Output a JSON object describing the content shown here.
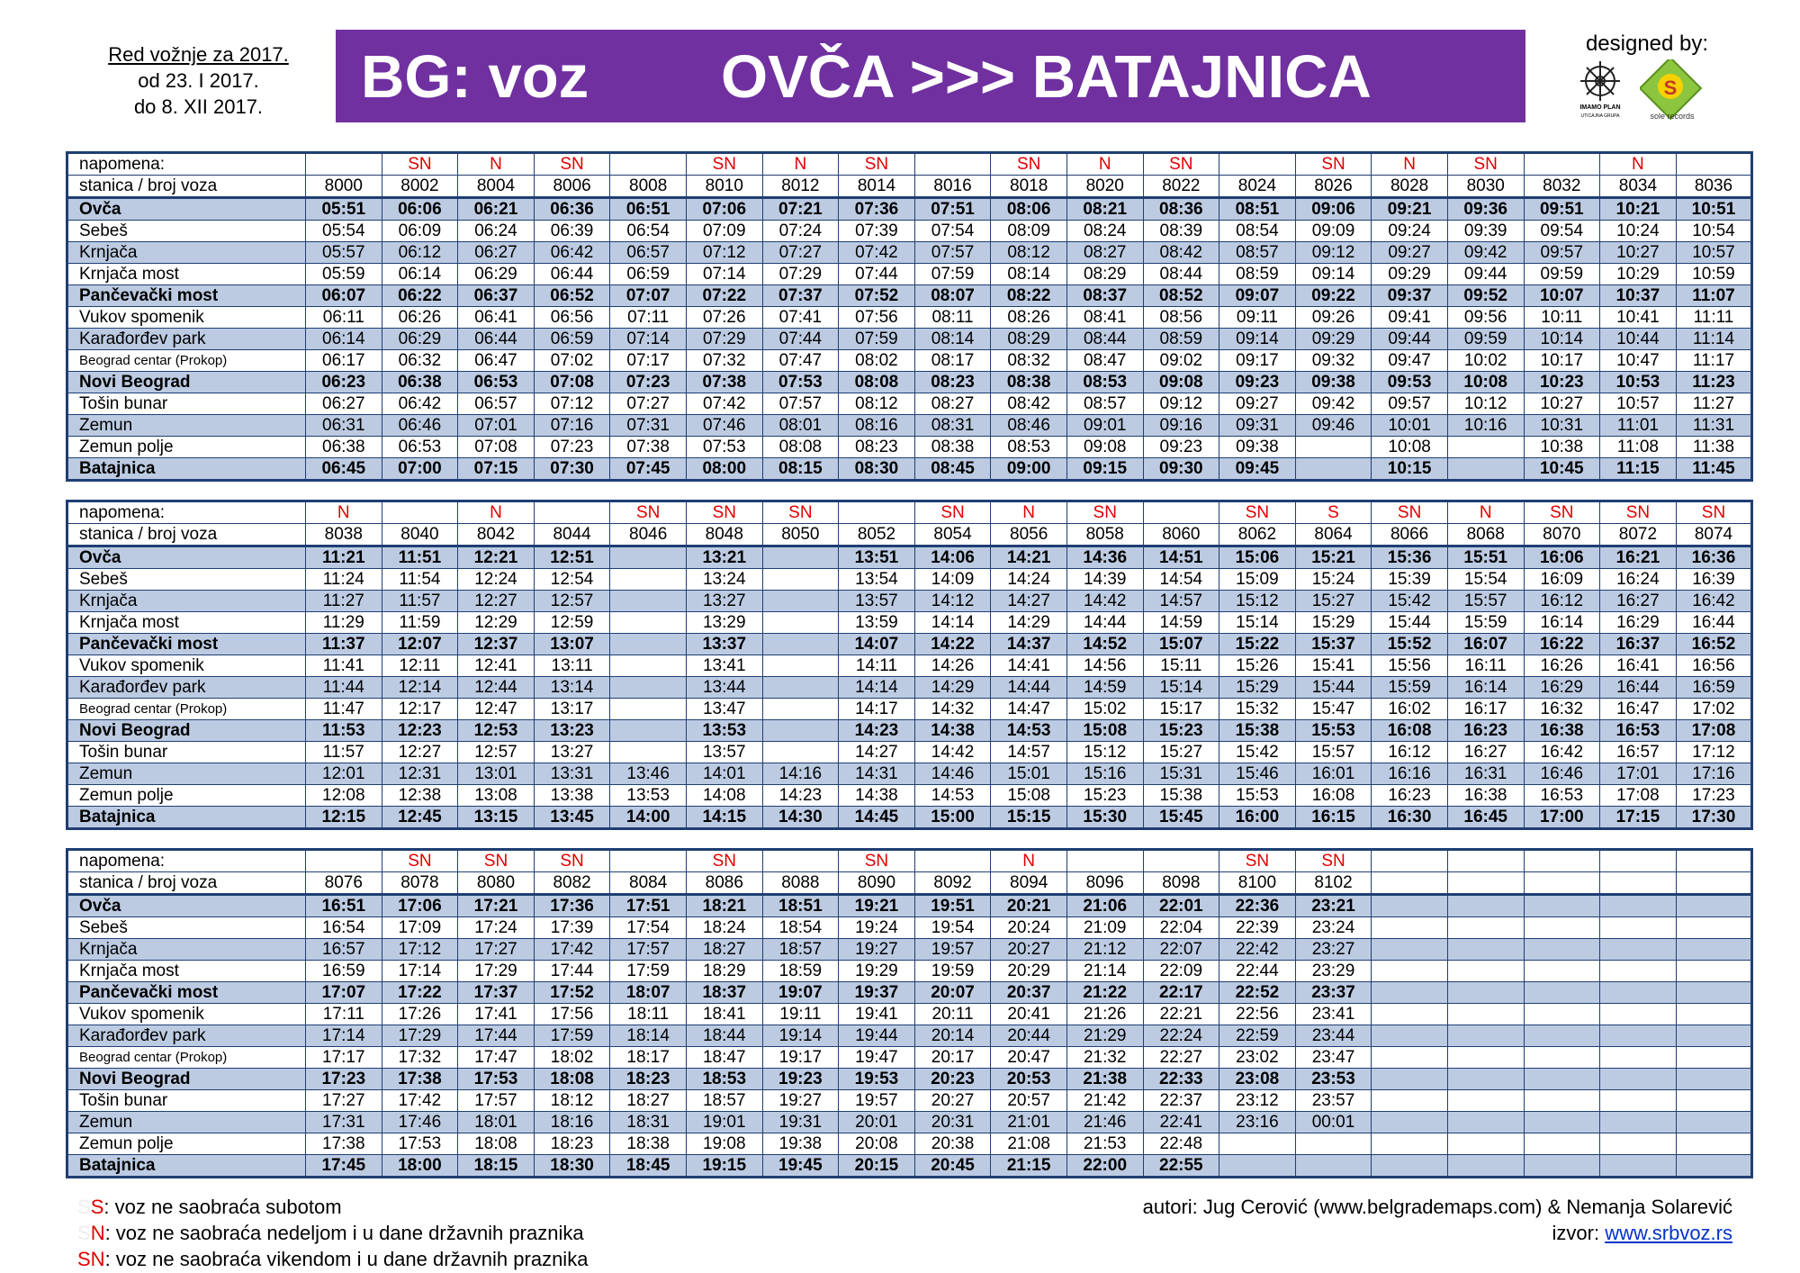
{
  "validity": [
    "Red vožnje za 2017.",
    "od 23. I 2017.",
    "do 8. XII 2017."
  ],
  "banner": {
    "left": "BG: voz",
    "right": "OVČA >>> BATAJNICA",
    "color": "#7030a0"
  },
  "designed_by": "designed by:",
  "logos": {
    "imamo_plan": "IMAMO PLAN",
    "imamo_plan_sub": "UTICAJNA GRUPA",
    "sole_records": "sole records"
  },
  "labels": {
    "note": "napomena:",
    "station_train": "stanica / broj voza"
  },
  "stations": [
    "Ovča",
    "Sebeš",
    "Krnjača",
    "Krnjača most",
    "Pančevački most",
    "Vukov spomenik",
    "Karađorđev park",
    "Beograd centar (Prokop)",
    "Novi Beograd",
    "Tošin bunar",
    "Zemun",
    "Zemun polje",
    "Batajnica"
  ],
  "tables": [
    {
      "trains": [
        "8000",
        "8002",
        "8004",
        "8006",
        "8008",
        "8010",
        "8012",
        "8014",
        "8016",
        "8018",
        "8020",
        "8022",
        "8024",
        "8026",
        "8028",
        "8030",
        "8032",
        "8034",
        "8036"
      ],
      "notes": [
        "",
        "SN",
        "N",
        "SN",
        "",
        "SN",
        "N",
        "SN",
        "",
        "SN",
        "N",
        "SN",
        "",
        "SN",
        "N",
        "SN",
        "",
        "N",
        ""
      ],
      "rows": [
        [
          "05:51",
          "06:06",
          "06:21",
          "06:36",
          "06:51",
          "07:06",
          "07:21",
          "07:36",
          "07:51",
          "08:06",
          "08:21",
          "08:36",
          "08:51",
          "09:06",
          "09:21",
          "09:36",
          "09:51",
          "10:21",
          "10:51"
        ],
        [
          "05:54",
          "06:09",
          "06:24",
          "06:39",
          "06:54",
          "07:09",
          "07:24",
          "07:39",
          "07:54",
          "08:09",
          "08:24",
          "08:39",
          "08:54",
          "09:09",
          "09:24",
          "09:39",
          "09:54",
          "10:24",
          "10:54"
        ],
        [
          "05:57",
          "06:12",
          "06:27",
          "06:42",
          "06:57",
          "07:12",
          "07:27",
          "07:42",
          "07:57",
          "08:12",
          "08:27",
          "08:42",
          "08:57",
          "09:12",
          "09:27",
          "09:42",
          "09:57",
          "10:27",
          "10:57"
        ],
        [
          "05:59",
          "06:14",
          "06:29",
          "06:44",
          "06:59",
          "07:14",
          "07:29",
          "07:44",
          "07:59",
          "08:14",
          "08:29",
          "08:44",
          "08:59",
          "09:14",
          "09:29",
          "09:44",
          "09:59",
          "10:29",
          "10:59"
        ],
        [
          "06:07",
          "06:22",
          "06:37",
          "06:52",
          "07:07",
          "07:22",
          "07:37",
          "07:52",
          "08:07",
          "08:22",
          "08:37",
          "08:52",
          "09:07",
          "09:22",
          "09:37",
          "09:52",
          "10:07",
          "10:37",
          "11:07"
        ],
        [
          "06:11",
          "06:26",
          "06:41",
          "06:56",
          "07:11",
          "07:26",
          "07:41",
          "07:56",
          "08:11",
          "08:26",
          "08:41",
          "08:56",
          "09:11",
          "09:26",
          "09:41",
          "09:56",
          "10:11",
          "10:41",
          "11:11"
        ],
        [
          "06:14",
          "06:29",
          "06:44",
          "06:59",
          "07:14",
          "07:29",
          "07:44",
          "07:59",
          "08:14",
          "08:29",
          "08:44",
          "08:59",
          "09:14",
          "09:29",
          "09:44",
          "09:59",
          "10:14",
          "10:44",
          "11:14"
        ],
        [
          "06:17",
          "06:32",
          "06:47",
          "07:02",
          "07:17",
          "07:32",
          "07:47",
          "08:02",
          "08:17",
          "08:32",
          "08:47",
          "09:02",
          "09:17",
          "09:32",
          "09:47",
          "10:02",
          "10:17",
          "10:47",
          "11:17"
        ],
        [
          "06:23",
          "06:38",
          "06:53",
          "07:08",
          "07:23",
          "07:38",
          "07:53",
          "08:08",
          "08:23",
          "08:38",
          "08:53",
          "09:08",
          "09:23",
          "09:38",
          "09:53",
          "10:08",
          "10:23",
          "10:53",
          "11:23"
        ],
        [
          "06:27",
          "06:42",
          "06:57",
          "07:12",
          "07:27",
          "07:42",
          "07:57",
          "08:12",
          "08:27",
          "08:42",
          "08:57",
          "09:12",
          "09:27",
          "09:42",
          "09:57",
          "10:12",
          "10:27",
          "10:57",
          "11:27"
        ],
        [
          "06:31",
          "06:46",
          "07:01",
          "07:16",
          "07:31",
          "07:46",
          "08:01",
          "08:16",
          "08:31",
          "08:46",
          "09:01",
          "09:16",
          "09:31",
          "09:46",
          "10:01",
          "10:16",
          "10:31",
          "11:01",
          "11:31"
        ],
        [
          "06:38",
          "06:53",
          "07:08",
          "07:23",
          "07:38",
          "07:53",
          "08:08",
          "08:23",
          "08:38",
          "08:53",
          "09:08",
          "09:23",
          "09:38",
          "",
          "10:08",
          "",
          "10:38",
          "11:08",
          "11:38"
        ],
        [
          "06:45",
          "07:00",
          "07:15",
          "07:30",
          "07:45",
          "08:00",
          "08:15",
          "08:30",
          "08:45",
          "09:00",
          "09:15",
          "09:30",
          "09:45",
          "",
          "10:15",
          "",
          "10:45",
          "11:15",
          "11:45"
        ]
      ]
    },
    {
      "trains": [
        "8038",
        "8040",
        "8042",
        "8044",
        "8046",
        "8048",
        "8050",
        "8052",
        "8054",
        "8056",
        "8058",
        "8060",
        "8062",
        "8064",
        "8066",
        "8068",
        "8070",
        "8072",
        "8074"
      ],
      "notes": [
        "N",
        "",
        "N",
        "",
        "SN",
        "SN",
        "SN",
        "",
        "SN",
        "N",
        "SN",
        "",
        "SN",
        "S",
        "SN",
        "N",
        "SN",
        "SN",
        "SN"
      ],
      "rows": [
        [
          "11:21",
          "11:51",
          "12:21",
          "12:51",
          "",
          "13:21",
          "",
          "13:51",
          "14:06",
          "14:21",
          "14:36",
          "14:51",
          "15:06",
          "15:21",
          "15:36",
          "15:51",
          "16:06",
          "16:21",
          "16:36"
        ],
        [
          "11:24",
          "11:54",
          "12:24",
          "12:54",
          "",
          "13:24",
          "",
          "13:54",
          "14:09",
          "14:24",
          "14:39",
          "14:54",
          "15:09",
          "15:24",
          "15:39",
          "15:54",
          "16:09",
          "16:24",
          "16:39"
        ],
        [
          "11:27",
          "11:57",
          "12:27",
          "12:57",
          "",
          "13:27",
          "",
          "13:57",
          "14:12",
          "14:27",
          "14:42",
          "14:57",
          "15:12",
          "15:27",
          "15:42",
          "15:57",
          "16:12",
          "16:27",
          "16:42"
        ],
        [
          "11:29",
          "11:59",
          "12:29",
          "12:59",
          "",
          "13:29",
          "",
          "13:59",
          "14:14",
          "14:29",
          "14:44",
          "14:59",
          "15:14",
          "15:29",
          "15:44",
          "15:59",
          "16:14",
          "16:29",
          "16:44"
        ],
        [
          "11:37",
          "12:07",
          "12:37",
          "13:07",
          "",
          "13:37",
          "",
          "14:07",
          "14:22",
          "14:37",
          "14:52",
          "15:07",
          "15:22",
          "15:37",
          "15:52",
          "16:07",
          "16:22",
          "16:37",
          "16:52"
        ],
        [
          "11:41",
          "12:11",
          "12:41",
          "13:11",
          "",
          "13:41",
          "",
          "14:11",
          "14:26",
          "14:41",
          "14:56",
          "15:11",
          "15:26",
          "15:41",
          "15:56",
          "16:11",
          "16:26",
          "16:41",
          "16:56"
        ],
        [
          "11:44",
          "12:14",
          "12:44",
          "13:14",
          "",
          "13:44",
          "",
          "14:14",
          "14:29",
          "14:44",
          "14:59",
          "15:14",
          "15:29",
          "15:44",
          "15:59",
          "16:14",
          "16:29",
          "16:44",
          "16:59"
        ],
        [
          "11:47",
          "12:17",
          "12:47",
          "13:17",
          "",
          "13:47",
          "",
          "14:17",
          "14:32",
          "14:47",
          "15:02",
          "15:17",
          "15:32",
          "15:47",
          "16:02",
          "16:17",
          "16:32",
          "16:47",
          "17:02"
        ],
        [
          "11:53",
          "12:23",
          "12:53",
          "13:23",
          "",
          "13:53",
          "",
          "14:23",
          "14:38",
          "14:53",
          "15:08",
          "15:23",
          "15:38",
          "15:53",
          "16:08",
          "16:23",
          "16:38",
          "16:53",
          "17:08"
        ],
        [
          "11:57",
          "12:27",
          "12:57",
          "13:27",
          "",
          "13:57",
          "",
          "14:27",
          "14:42",
          "14:57",
          "15:12",
          "15:27",
          "15:42",
          "15:57",
          "16:12",
          "16:27",
          "16:42",
          "16:57",
          "17:12"
        ],
        [
          "12:01",
          "12:31",
          "13:01",
          "13:31",
          "13:46",
          "14:01",
          "14:16",
          "14:31",
          "14:46",
          "15:01",
          "15:16",
          "15:31",
          "15:46",
          "16:01",
          "16:16",
          "16:31",
          "16:46",
          "17:01",
          "17:16"
        ],
        [
          "12:08",
          "12:38",
          "13:08",
          "13:38",
          "13:53",
          "14:08",
          "14:23",
          "14:38",
          "14:53",
          "15:08",
          "15:23",
          "15:38",
          "15:53",
          "16:08",
          "16:23",
          "16:38",
          "16:53",
          "17:08",
          "17:23"
        ],
        [
          "12:15",
          "12:45",
          "13:15",
          "13:45",
          "14:00",
          "14:15",
          "14:30",
          "14:45",
          "15:00",
          "15:15",
          "15:30",
          "15:45",
          "16:00",
          "16:15",
          "16:30",
          "16:45",
          "17:00",
          "17:15",
          "17:30"
        ]
      ]
    },
    {
      "trains": [
        "8076",
        "8078",
        "8080",
        "8082",
        "8084",
        "8086",
        "8088",
        "8090",
        "8092",
        "8094",
        "8096",
        "8098",
        "8100",
        "8102",
        "",
        "",
        "",
        "",
        ""
      ],
      "notes": [
        "",
        "SN",
        "SN",
        "SN",
        "",
        "SN",
        "",
        "SN",
        "",
        "N",
        "",
        "",
        "SN",
        "SN",
        "",
        "",
        "",
        "",
        ""
      ],
      "rows": [
        [
          "16:51",
          "17:06",
          "17:21",
          "17:36",
          "17:51",
          "18:21",
          "18:51",
          "19:21",
          "19:51",
          "20:21",
          "21:06",
          "22:01",
          "22:36",
          "23:21",
          "",
          "",
          "",
          "",
          ""
        ],
        [
          "16:54",
          "17:09",
          "17:24",
          "17:39",
          "17:54",
          "18:24",
          "18:54",
          "19:24",
          "19:54",
          "20:24",
          "21:09",
          "22:04",
          "22:39",
          "23:24",
          "",
          "",
          "",
          "",
          ""
        ],
        [
          "16:57",
          "17:12",
          "17:27",
          "17:42",
          "17:57",
          "18:27",
          "18:57",
          "19:27",
          "19:57",
          "20:27",
          "21:12",
          "22:07",
          "22:42",
          "23:27",
          "",
          "",
          "",
          "",
          ""
        ],
        [
          "16:59",
          "17:14",
          "17:29",
          "17:44",
          "17:59",
          "18:29",
          "18:59",
          "19:29",
          "19:59",
          "20:29",
          "21:14",
          "22:09",
          "22:44",
          "23:29",
          "",
          "",
          "",
          "",
          ""
        ],
        [
          "17:07",
          "17:22",
          "17:37",
          "17:52",
          "18:07",
          "18:37",
          "19:07",
          "19:37",
          "20:07",
          "20:37",
          "21:22",
          "22:17",
          "22:52",
          "23:37",
          "",
          "",
          "",
          "",
          ""
        ],
        [
          "17:11",
          "17:26",
          "17:41",
          "17:56",
          "18:11",
          "18:41",
          "19:11",
          "19:41",
          "20:11",
          "20:41",
          "21:26",
          "22:21",
          "22:56",
          "23:41",
          "",
          "",
          "",
          "",
          ""
        ],
        [
          "17:14",
          "17:29",
          "17:44",
          "17:59",
          "18:14",
          "18:44",
          "19:14",
          "19:44",
          "20:14",
          "20:44",
          "21:29",
          "22:24",
          "22:59",
          "23:44",
          "",
          "",
          "",
          "",
          ""
        ],
        [
          "17:17",
          "17:32",
          "17:47",
          "18:02",
          "18:17",
          "18:47",
          "19:17",
          "19:47",
          "20:17",
          "20:47",
          "21:32",
          "22:27",
          "23:02",
          "23:47",
          "",
          "",
          "",
          "",
          ""
        ],
        [
          "17:23",
          "17:38",
          "17:53",
          "18:08",
          "18:23",
          "18:53",
          "19:23",
          "19:53",
          "20:23",
          "20:53",
          "21:38",
          "22:33",
          "23:08",
          "23:53",
          "",
          "",
          "",
          "",
          ""
        ],
        [
          "17:27",
          "17:42",
          "17:57",
          "18:12",
          "18:27",
          "18:57",
          "19:27",
          "19:57",
          "20:27",
          "20:57",
          "21:42",
          "22:37",
          "23:12",
          "23:57",
          "",
          "",
          "",
          "",
          ""
        ],
        [
          "17:31",
          "17:46",
          "18:01",
          "18:16",
          "18:31",
          "19:01",
          "19:31",
          "20:01",
          "20:31",
          "21:01",
          "21:46",
          "22:41",
          "23:16",
          "00:01",
          "",
          "",
          "",
          "",
          ""
        ],
        [
          "17:38",
          "17:53",
          "18:08",
          "18:23",
          "18:38",
          "19:08",
          "19:38",
          "20:08",
          "20:38",
          "21:08",
          "21:53",
          "22:48",
          "",
          "",
          "",
          "",
          "",
          "",
          ""
        ],
        [
          "17:45",
          "18:00",
          "18:15",
          "18:30",
          "18:45",
          "19:15",
          "19:45",
          "20:15",
          "20:45",
          "21:15",
          "22:00",
          "22:55",
          "",
          "",
          "",
          "",
          "",
          "",
          ""
        ]
      ]
    }
  ],
  "legend": [
    {
      "ghost": "S",
      "key": "S",
      "text": ": voz ne saobraća subotom"
    },
    {
      "ghost": "S",
      "key": "N",
      "text": ": voz ne saobraća nedeljom i u dane državnih praznika"
    },
    {
      "ghost": "",
      "key": "SN",
      "text": ": voz ne saobraća vikendom i u dane državnih praznika"
    }
  ],
  "authors": "autori: Jug Cerović (www.belgrademaps.com) & Nemanja Solarević",
  "source_label": "izvor: ",
  "source_link": "www.srbvoz.rs",
  "colors": {
    "note_red": "#e00000",
    "shade": "#bccbe2",
    "border": "#1f3e74",
    "link": "#0033cc"
  }
}
